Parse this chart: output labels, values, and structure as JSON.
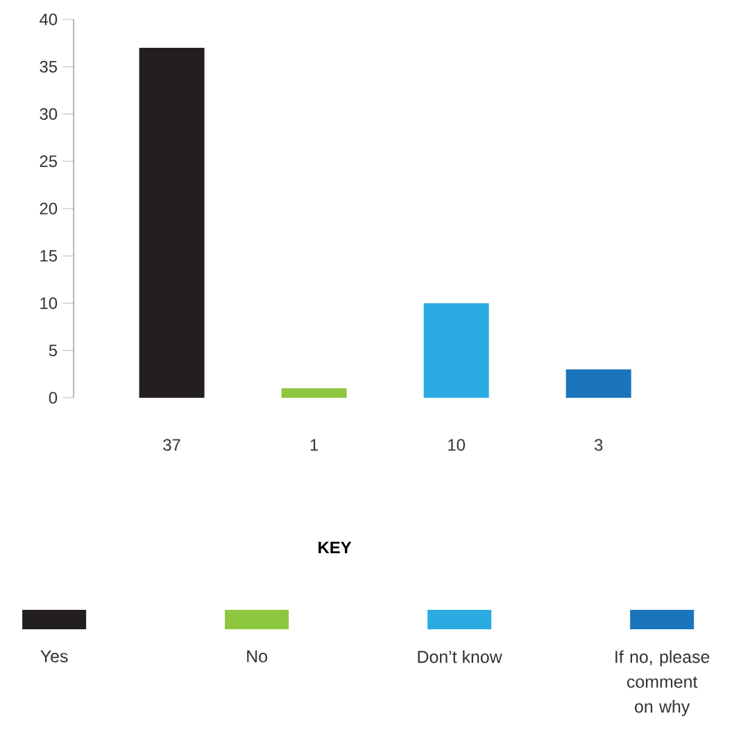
{
  "chart_data": {
    "type": "bar",
    "categories": [
      null,
      null,
      null,
      null
    ],
    "values": [
      37,
      1,
      10,
      3
    ],
    "colors": [
      "#231f20",
      "#8dc63f",
      "#29abe2",
      "#1b75bc"
    ],
    "data_labels": true,
    "annotations": [
      "KEY",
      "Yes",
      "No",
      "Don’t know",
      "If no, please comment on why"
    ],
    "ylim": [
      0,
      40
    ],
    "yticks": [
      0,
      5,
      10,
      15,
      20,
      25,
      30,
      35,
      40
    ]
  }
}
